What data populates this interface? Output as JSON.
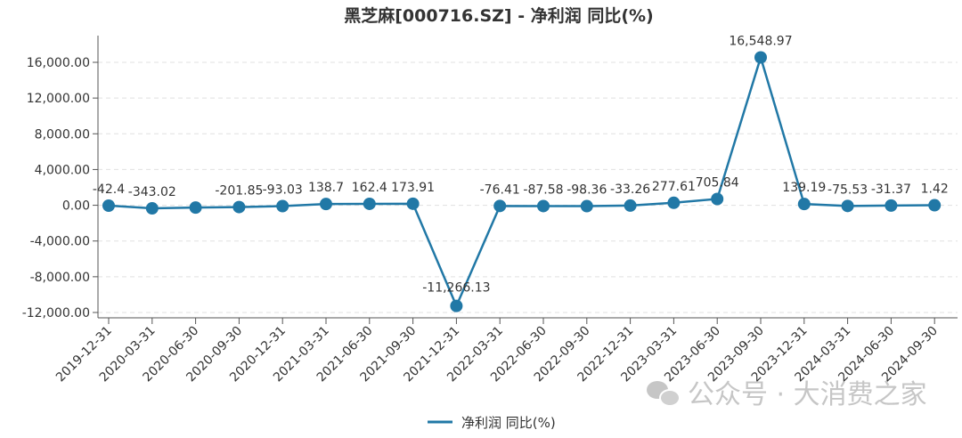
{
  "chart_data": {
    "type": "line",
    "title": "黑芝麻[000716.SZ] - 净利润 同比(%)",
    "xlabel": "",
    "ylabel": "",
    "ylim": [
      -12000,
      16000
    ],
    "yticks": [
      16000,
      12000,
      8000,
      4000,
      0,
      -4000,
      -8000,
      -12000
    ],
    "ytick_labels": [
      "16,000.00",
      "12,000.00",
      "8,000.00",
      "4,000.00",
      "0.00",
      "-4,000.00",
      "-8,000.00",
      "-12,000.00"
    ],
    "grid": true,
    "legend_position": "bottom",
    "categories": [
      "2019-12-31",
      "2020-03-31",
      "2020-06-30",
      "2020-09-30",
      "2020-12-31",
      "2021-03-31",
      "2021-06-30",
      "2021-09-30",
      "2021-12-31",
      "2022-03-31",
      "2022-06-30",
      "2022-09-30",
      "2022-12-31",
      "2023-03-31",
      "2023-06-30",
      "2023-09-30",
      "2023-12-31",
      "2024-03-31",
      "2024-06-30",
      "2024-09-30"
    ],
    "series": [
      {
        "name": "净利润 同比(%)",
        "color": "#2178a6",
        "values": [
          -42.4,
          -343.02,
          -260,
          -201.85,
          -93.03,
          138.7,
          162.4,
          173.91,
          -11266.13,
          -76.41,
          -87.58,
          -98.36,
          -33.26,
          277.61,
          705.84,
          16548.97,
          139.19,
          -75.53,
          -31.37,
          1.42
        ],
        "labels": [
          "-42.4",
          "-343.02",
          null,
          "-201.85",
          "-93.03",
          "138.7",
          "162.4",
          "173.91",
          "-11,266.13",
          "-76.41",
          "-87.58",
          "-98.36",
          "-33.26",
          "277.61",
          "705.84",
          "16,548.97",
          "139.19",
          "-75.53",
          "-31.37",
          "1.42"
        ]
      }
    ]
  },
  "watermark": "公众号 · 大消费之家"
}
